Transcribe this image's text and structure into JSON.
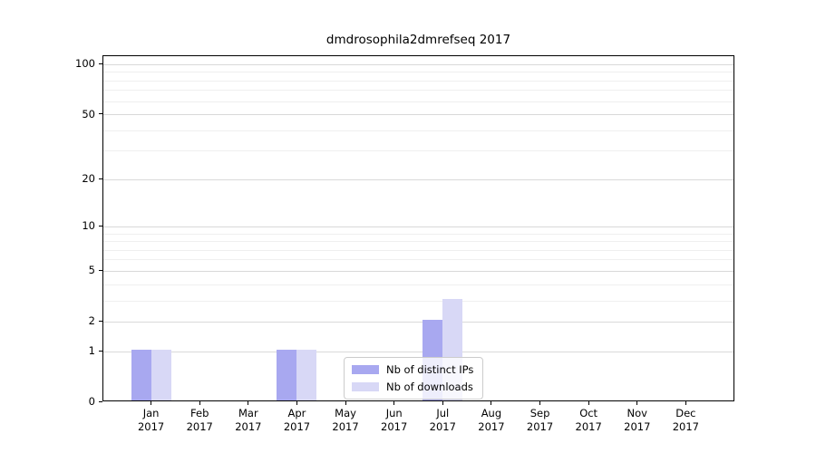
{
  "title": "dmdrosophila2dmrefseq 2017",
  "chart_data": {
    "type": "bar",
    "title": "dmdrosophila2dmrefseq 2017",
    "categories": [
      {
        "month": "Jan",
        "year": "2017"
      },
      {
        "month": "Feb",
        "year": "2017"
      },
      {
        "month": "Mar",
        "year": "2017"
      },
      {
        "month": "Apr",
        "year": "2017"
      },
      {
        "month": "May",
        "year": "2017"
      },
      {
        "month": "Jun",
        "year": "2017"
      },
      {
        "month": "Jul",
        "year": "2017"
      },
      {
        "month": "Aug",
        "year": "2017"
      },
      {
        "month": "Sep",
        "year": "2017"
      },
      {
        "month": "Oct",
        "year": "2017"
      },
      {
        "month": "Nov",
        "year": "2017"
      },
      {
        "month": "Dec",
        "year": "2017"
      }
    ],
    "series": [
      {
        "name": "Nb of distinct IPs",
        "color": "#a8a8f0",
        "values": [
          1,
          0,
          0,
          1,
          0,
          0,
          2,
          0,
          0,
          0,
          0,
          0
        ]
      },
      {
        "name": "Nb of downloads",
        "color": "#d8d8f6",
        "values": [
          1,
          0,
          0,
          1,
          0,
          0,
          3,
          0,
          0,
          0,
          0,
          0
        ]
      }
    ],
    "xlabel": "",
    "ylabel": "",
    "yscale": "log1p",
    "ylim": [
      0,
      112.5
    ],
    "y_ticks": [
      0,
      1,
      2,
      5,
      10,
      20,
      50,
      100
    ],
    "y_minor_gridlines": [
      3,
      4,
      6,
      7,
      8,
      9,
      30,
      40,
      60,
      70,
      80,
      90
    ],
    "grid": "horizontal-major-and-minor",
    "legend_position": "lower-center",
    "colors": {
      "major_grid": "#d9d9d9",
      "minor_grid": "#efefef",
      "spine": "#000000",
      "background": "#ffffff"
    }
  }
}
